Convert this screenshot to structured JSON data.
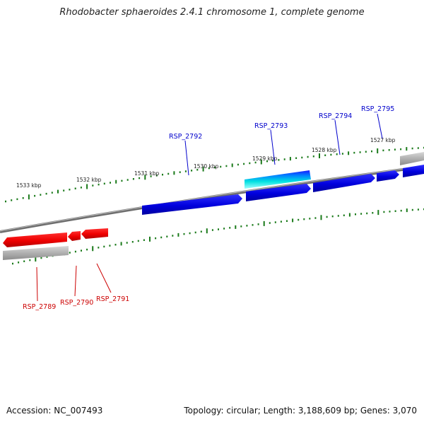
{
  "title": "Rhodobacter sphaeroides 2.4.1 chromosome 1, complete genome",
  "footer": {
    "accession": "Accession: NC_007493",
    "summary": "Topology: circular; Length: 3,188,609 bp; Genes: 3,070"
  },
  "kbp_labels": [
    "1533 kbp",
    "1532 kbp",
    "1531 kbp",
    "1530 kbp",
    "1529 kbp",
    "1528 kbp",
    "1527 kbp"
  ],
  "genes_forward": [
    "RSP_2792",
    "RSP_2793",
    "RSP_2794",
    "RSP_2795"
  ],
  "genes_reverse": [
    "RSP_2789",
    "RSP_2790",
    "RSP_2791"
  ],
  "colors": {
    "forward_gene": "#0000dd",
    "forward_label": "#0000cc",
    "highlight_gene": "#00dddd",
    "reverse_gene": "#ee0000",
    "reverse_label": "#cc0000",
    "tick": "#1a7a1a",
    "backbone": "#777777",
    "pseudo_gene": "#aaaaaa"
  }
}
